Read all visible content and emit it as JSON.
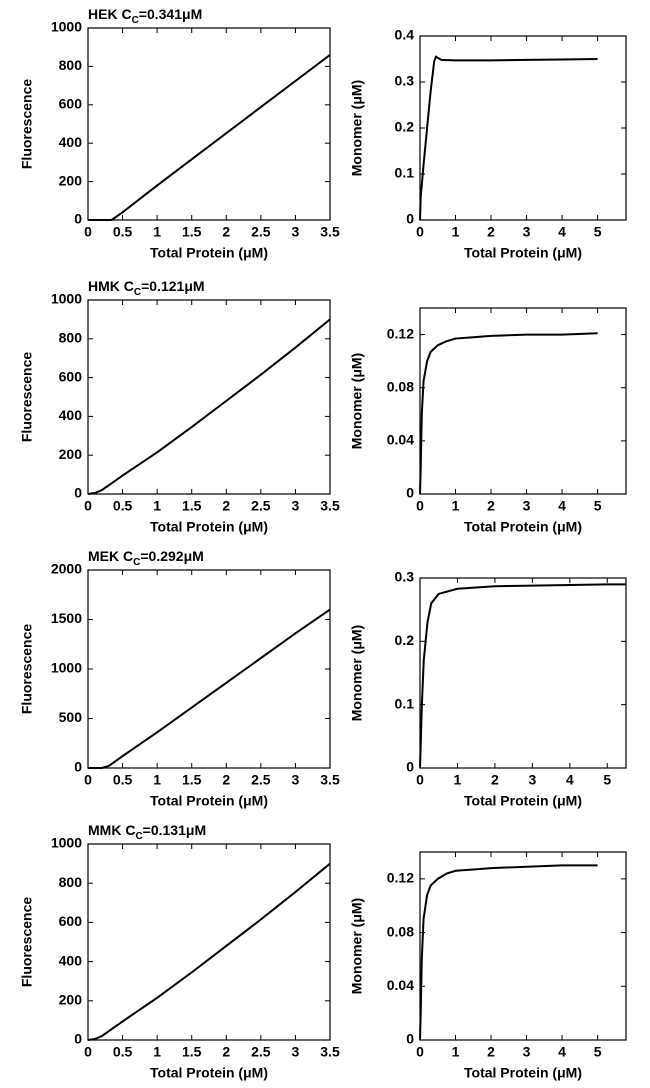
{
  "chart_data": [
    {
      "type": "line",
      "title": [
        "HEK C",
        "C",
        "=0.341μM"
      ],
      "x_label": "Total Protein (μM)",
      "y_label": "Fluorescence",
      "color": "#000000",
      "x": [
        0,
        0.1,
        0.2,
        0.3,
        0.341,
        0.5,
        1,
        1.5,
        2,
        2.5,
        3,
        3.5
      ],
      "values": [
        0,
        0,
        0,
        0,
        0,
        40,
        180,
        316,
        452,
        588,
        724,
        860
      ],
      "xlim": [
        0,
        3.5
      ],
      "xticks": [
        0,
        0.5,
        1,
        1.5,
        2,
        2.5,
        3,
        3.5
      ],
      "ylim": [
        0,
        1000
      ],
      "yticks": [
        0,
        200,
        400,
        600,
        800,
        1000
      ],
      "grid": false
    },
    {
      "type": "line",
      "x_label": "Total Protein (μM)",
      "y_label": "Monomer (μM)",
      "color": "#000000",
      "x": [
        0,
        0.02,
        0.1,
        0.2,
        0.3,
        0.4,
        0.45,
        0.6,
        1,
        2,
        3,
        4,
        5
      ],
      "values": [
        0,
        0.05,
        0.12,
        0.2,
        0.28,
        0.345,
        0.355,
        0.348,
        0.347,
        0.347,
        0.348,
        0.349,
        0.35
      ],
      "xlim": [
        0,
        5.8
      ],
      "xticks": [
        0,
        1,
        2,
        3,
        4,
        5
      ],
      "ylim": [
        0,
        0.4
      ],
      "yticks": [
        0,
        0.1,
        0.2,
        0.3,
        0.4
      ],
      "grid": false
    },
    {
      "type": "line",
      "title": [
        "HMK C",
        "C",
        "=0.121μM"
      ],
      "x_label": "Total Protein (μM)",
      "y_label": "Fluorescence",
      "color": "#000000",
      "x": [
        0,
        0.1,
        0.2,
        0.3,
        0.5,
        1,
        1.5,
        2,
        2.5,
        3,
        3.5
      ],
      "values": [
        0,
        5,
        20,
        45,
        95,
        215,
        345,
        480,
        615,
        755,
        900
      ],
      "xlim": [
        0,
        3.5
      ],
      "xticks": [
        0,
        0.5,
        1,
        1.5,
        2,
        2.5,
        3,
        3.5
      ],
      "ylim": [
        0,
        1000
      ],
      "yticks": [
        0,
        200,
        400,
        600,
        800,
        1000
      ],
      "grid": false
    },
    {
      "type": "line",
      "x_label": "Total Protein (μM)",
      "y_label": "Monomer (μM)",
      "color": "#000000",
      "x": [
        0,
        0.02,
        0.05,
        0.1,
        0.2,
        0.3,
        0.5,
        0.75,
        1,
        1.5,
        2,
        3,
        4,
        5
      ],
      "values": [
        0,
        0.02,
        0.06,
        0.085,
        0.1,
        0.107,
        0.112,
        0.115,
        0.117,
        0.118,
        0.119,
        0.12,
        0.12,
        0.121
      ],
      "xlim": [
        0,
        5.8
      ],
      "xticks": [
        0,
        1,
        2,
        3,
        4,
        5
      ],
      "ylim": [
        0,
        0.14
      ],
      "yticks": [
        0,
        0.04,
        0.08,
        0.12
      ],
      "grid": false
    },
    {
      "type": "line",
      "title": [
        "MEK C",
        "C",
        "=0.292μM"
      ],
      "x_label": "Total Protein (μM)",
      "y_label": "Fluorescence",
      "color": "#000000",
      "x": [
        0,
        0.2,
        0.3,
        0.5,
        1,
        1.5,
        2,
        2.5,
        3,
        3.5
      ],
      "values": [
        0,
        0,
        20,
        120,
        360,
        610,
        860,
        1110,
        1360,
        1600
      ],
      "xlim": [
        0,
        3.5
      ],
      "xticks": [
        0,
        0.5,
        1,
        1.5,
        2,
        2.5,
        3,
        3.5
      ],
      "ylim": [
        0,
        2000
      ],
      "yticks": [
        0,
        500,
        1000,
        1500,
        2000
      ],
      "grid": false
    },
    {
      "type": "line",
      "x_label": "Total Protein (μM)",
      "y_label": "Monomer (μM)",
      "color": "#000000",
      "x": [
        0,
        0.02,
        0.05,
        0.1,
        0.2,
        0.3,
        0.5,
        1,
        2,
        3,
        4,
        5,
        5.5
      ],
      "values": [
        0,
        0.04,
        0.1,
        0.17,
        0.23,
        0.26,
        0.275,
        0.283,
        0.287,
        0.288,
        0.289,
        0.29,
        0.29
      ],
      "xlim": [
        0,
        5.5
      ],
      "xticks": [
        0,
        1,
        2,
        3,
        4,
        5
      ],
      "ylim": [
        0,
        0.3
      ],
      "yticks": [
        0,
        0.1,
        0.2,
        0.3
      ],
      "grid": false
    },
    {
      "type": "line",
      "title": [
        "MMK C",
        "C",
        "=0.131μM"
      ],
      "x_label": "Total Protein (μM)",
      "y_label": "Fluorescence",
      "color": "#000000",
      "x": [
        0,
        0.1,
        0.2,
        0.3,
        0.5,
        1,
        1.5,
        2,
        2.5,
        3,
        3.5
      ],
      "values": [
        0,
        5,
        20,
        45,
        95,
        215,
        345,
        480,
        615,
        755,
        900
      ],
      "xlim": [
        0,
        3.5
      ],
      "xticks": [
        0,
        0.5,
        1,
        1.5,
        2,
        2.5,
        3,
        3.5
      ],
      "ylim": [
        0,
        1000
      ],
      "yticks": [
        0,
        200,
        400,
        600,
        800,
        1000
      ],
      "grid": false
    },
    {
      "type": "line",
      "x_label": "Total Protein (μM)",
      "y_label": "Monomer (μM)",
      "color": "#000000",
      "x": [
        0,
        0.02,
        0.05,
        0.1,
        0.2,
        0.3,
        0.5,
        0.75,
        1,
        1.5,
        2,
        3,
        4,
        5
      ],
      "values": [
        0,
        0.02,
        0.06,
        0.09,
        0.108,
        0.115,
        0.12,
        0.124,
        0.126,
        0.127,
        0.128,
        0.129,
        0.13,
        0.13
      ],
      "xlim": [
        0,
        5.8
      ],
      "xticks": [
        0,
        1,
        2,
        3,
        4,
        5
      ],
      "ylim": [
        0,
        0.14
      ],
      "yticks": [
        0,
        0.04,
        0.08,
        0.12
      ],
      "grid": false
    }
  ]
}
